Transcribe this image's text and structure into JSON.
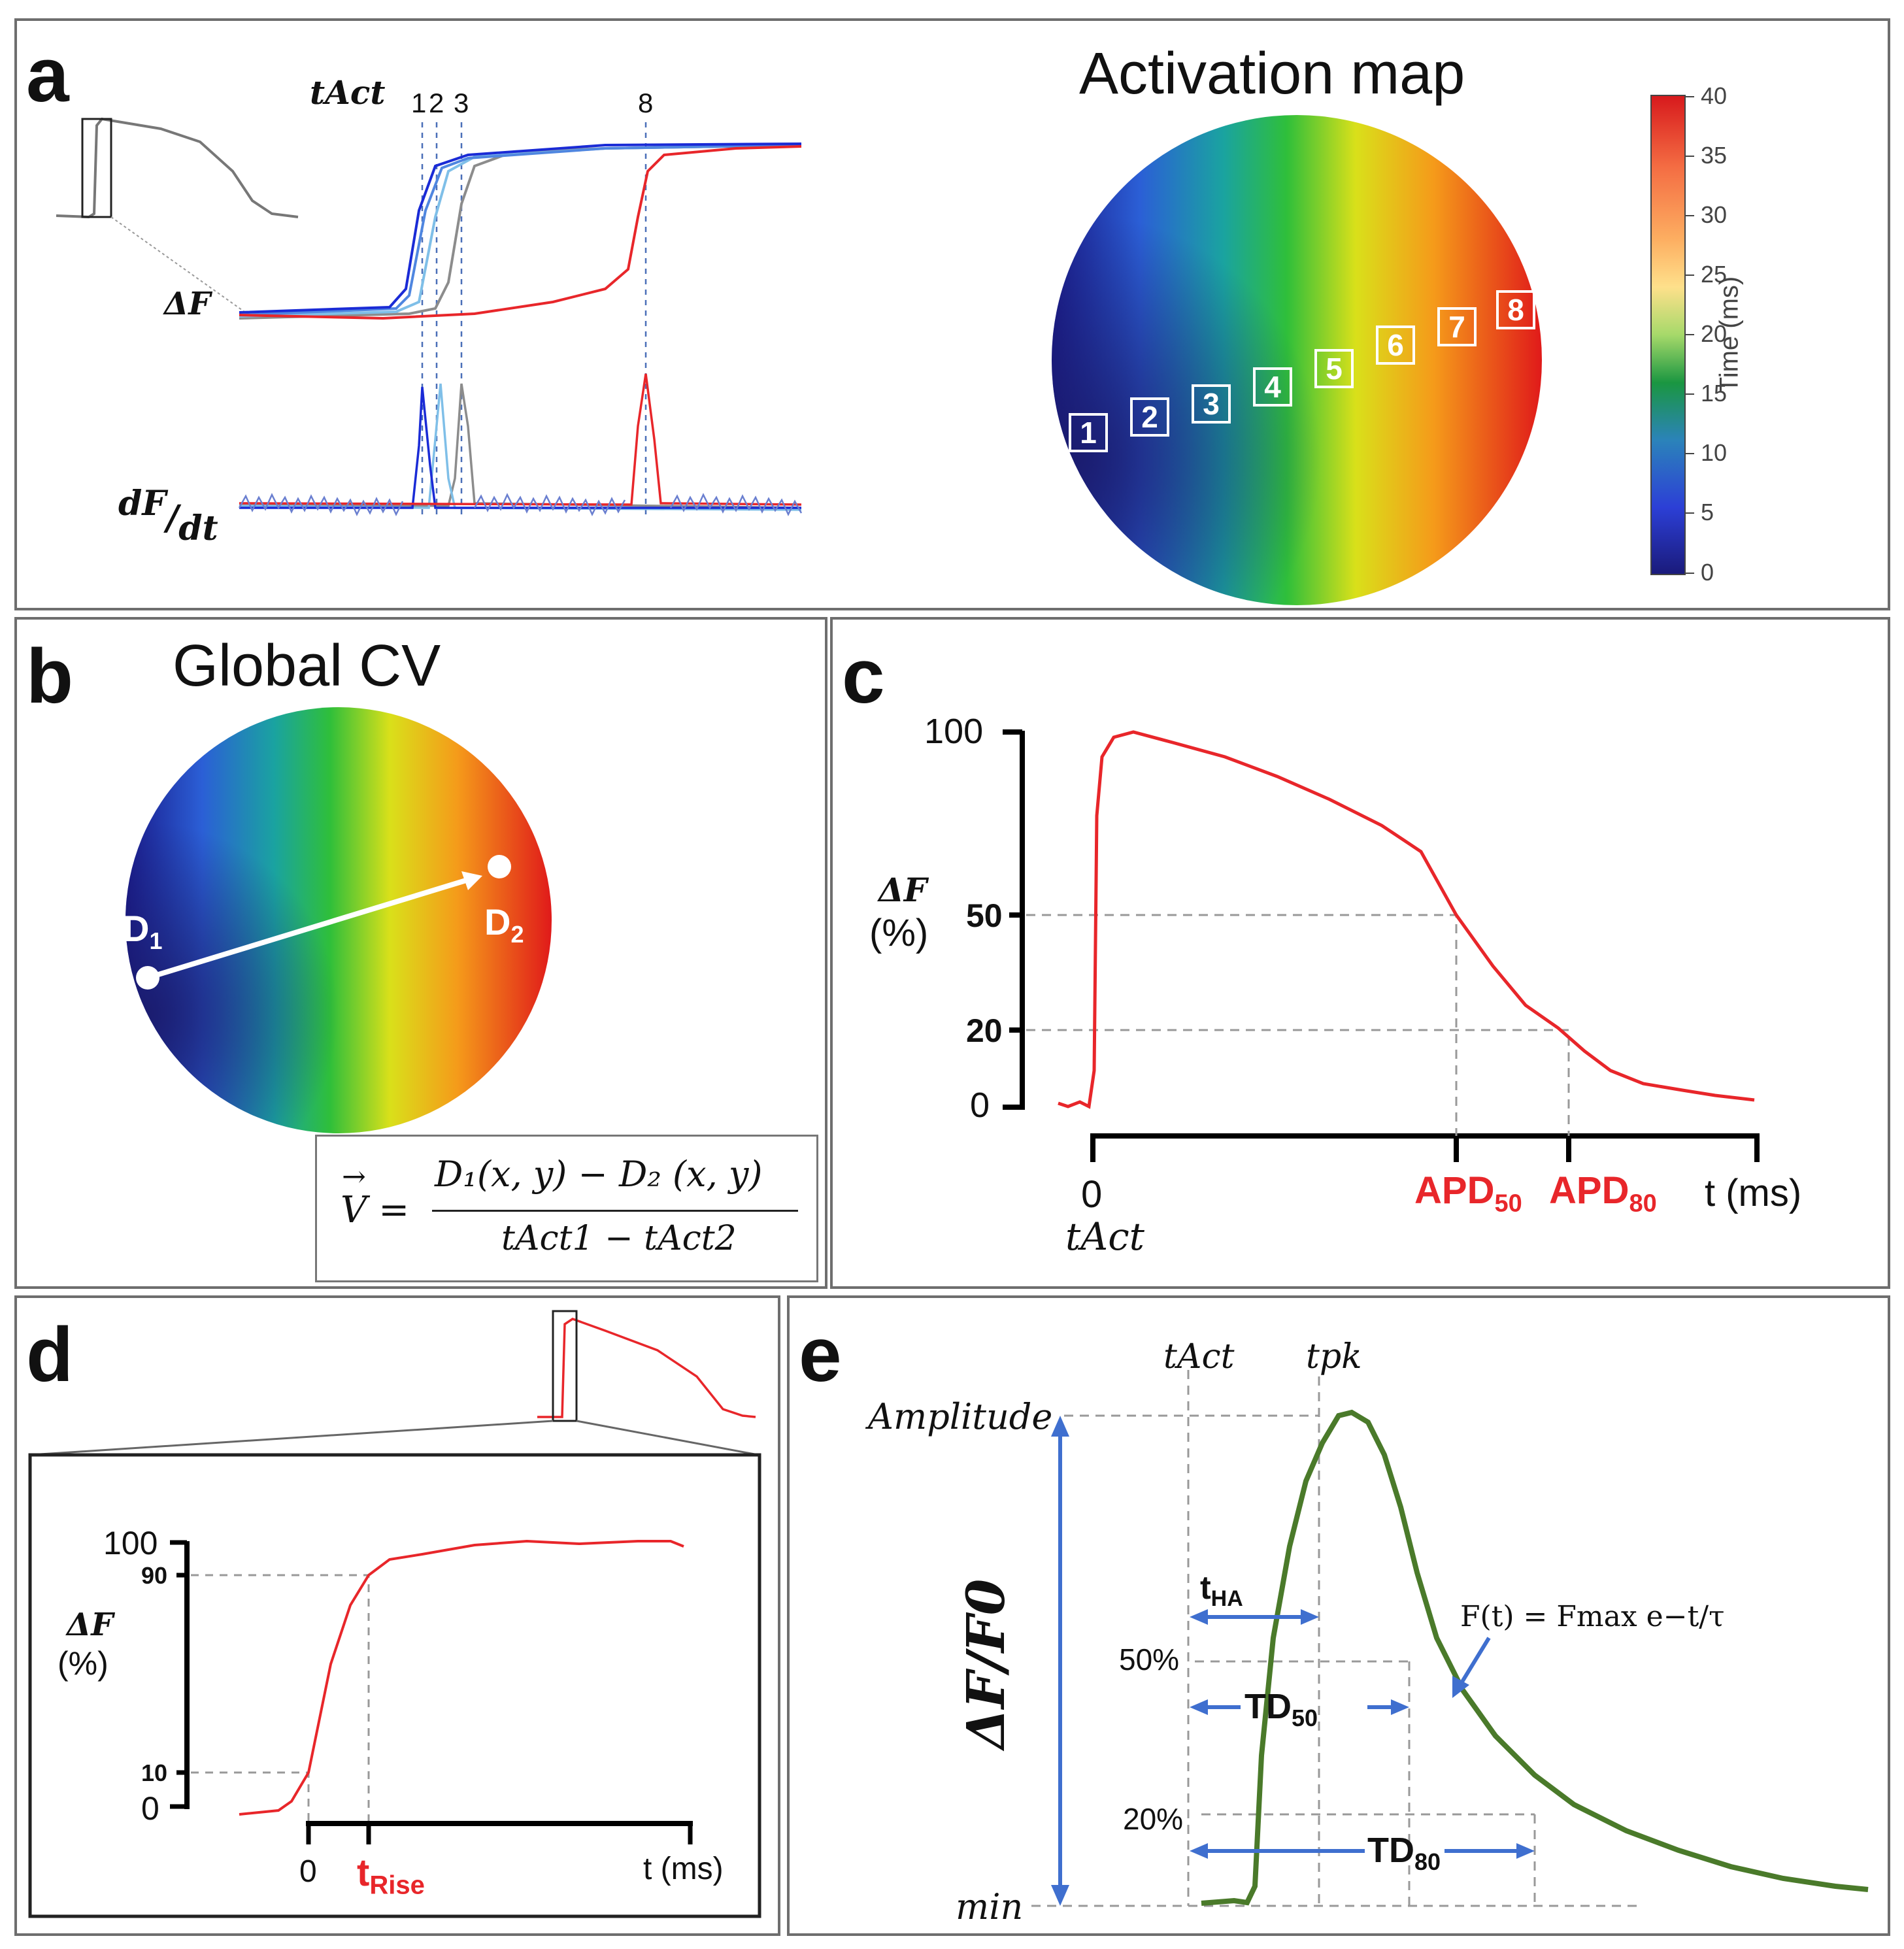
{
  "panel_a": {
    "label": "a",
    "t_act_label": "tAct",
    "trace_ticks": [
      "1",
      "2",
      "3",
      "8"
    ],
    "delta_f_label": "ΔF",
    "dfdt_num": "dF",
    "dfdt_den": "dt",
    "activation_title": "Activation map",
    "map_markers": [
      "1",
      "2",
      "3",
      "4",
      "5",
      "6",
      "7",
      "8"
    ],
    "colorbar": {
      "title": "Time (ms)",
      "ticks": [
        "40",
        "35",
        "30",
        "25",
        "20",
        "15",
        "10",
        "5",
        "0"
      ],
      "colors": [
        "#d7191c",
        "#f46d43",
        "#fdae61",
        "#fee08b",
        "#a6d96a",
        "#1a9641",
        "#2b83ba",
        "#2c3fd6",
        "#1a1a7a"
      ]
    },
    "trace_colors": [
      "#1a2bd6",
      "#4f86e0",
      "#7fbfe8",
      "#8c8c8c",
      "#e8262a"
    ]
  },
  "panel_b": {
    "label": "b",
    "title": "Global CV",
    "point1": "D",
    "point1_sub": "1",
    "point2": "D",
    "point2_sub": "2",
    "formula_lhs": "V",
    "formula_num": "D₁(x, y) − D₂ (x, y)",
    "formula_den": "tAct1 − tAct2"
  },
  "panel_c": {
    "label": "c",
    "y_label": "ΔF",
    "y_unit": "(%)",
    "y_ticks": [
      "100",
      "50",
      "20",
      "0"
    ],
    "x_ticks": [
      "0"
    ],
    "x_tact": "tAct",
    "apd50": "APD",
    "apd50_sub": "50",
    "apd80": "APD",
    "apd80_sub": "80",
    "x_unit": "t (ms)",
    "curve_color": "#e8262a"
  },
  "panel_d": {
    "label": "d",
    "y_label": "ΔF",
    "y_unit": "(%)",
    "y_ticks": [
      "100",
      "90",
      "10",
      "0"
    ],
    "x_zero": "0",
    "t_rise": "t",
    "t_rise_sub": "Rise",
    "x_unit": "t (ms)"
  },
  "panel_e": {
    "label": "e",
    "t_act": "tAct",
    "t_pk": "tpk",
    "amplitude": "Amplitude",
    "min": "min",
    "y_label": "ΔF/F0",
    "pct50": "50%",
    "pct20": "20%",
    "tha": "t",
    "tha_sub": "HA",
    "td50": "TD",
    "td50_sub": "50",
    "td80": "TD",
    "td80_sub": "80",
    "fit_formula": "F(t) = Fmax e−t/τ",
    "curve_color": "#4a7a2a",
    "arrow_color": "#3f6fcf"
  }
}
